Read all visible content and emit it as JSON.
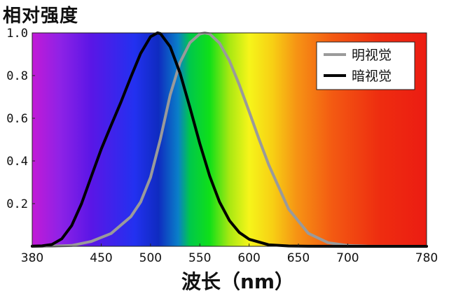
{
  "chart_data": {
    "type": "line",
    "ylabel": "相对强度",
    "xlabel": "波长（nm）",
    "xlim": [
      380,
      780
    ],
    "ylim": [
      0,
      1.0
    ],
    "xticks": [
      380,
      450,
      500,
      550,
      600,
      650,
      700,
      780
    ],
    "yticks": [
      0.2,
      0.4,
      0.6,
      0.8,
      1.0
    ],
    "ytick_labels": [
      "0.2",
      "0.4",
      "0.6",
      "0.8",
      "1.0"
    ],
    "grid": false,
    "legend_position": "top-right",
    "background": "visible spectrum gradient",
    "series": [
      {
        "name": "明视觉",
        "color": "#9a9a9a",
        "x": [
          380,
          400,
          420,
          440,
          460,
          480,
          490,
          500,
          510,
          520,
          530,
          540,
          550,
          555,
          560,
          570,
          580,
          590,
          600,
          610,
          620,
          640,
          660,
          680,
          700,
          720,
          740,
          780
        ],
        "y": [
          0.0,
          0.0004,
          0.004,
          0.023,
          0.06,
          0.139,
          0.208,
          0.323,
          0.503,
          0.71,
          0.862,
          0.954,
          0.995,
          1.0,
          0.995,
          0.952,
          0.87,
          0.757,
          0.631,
          0.503,
          0.381,
          0.175,
          0.061,
          0.017,
          0.004,
          0.001,
          0.0002,
          0.0
        ]
      },
      {
        "name": "暗视觉",
        "color": "#000000",
        "x": [
          380,
          390,
          400,
          410,
          420,
          430,
          440,
          450,
          460,
          470,
          480,
          490,
          500,
          507,
          510,
          520,
          530,
          540,
          550,
          560,
          570,
          580,
          590,
          600,
          620,
          640,
          660,
          700,
          780
        ],
        "y": [
          0.0006,
          0.002,
          0.009,
          0.035,
          0.097,
          0.2,
          0.328,
          0.455,
          0.567,
          0.676,
          0.793,
          0.904,
          0.982,
          1.0,
          0.997,
          0.935,
          0.811,
          0.65,
          0.481,
          0.329,
          0.208,
          0.121,
          0.065,
          0.033,
          0.007,
          0.0015,
          0.0003,
          0.0,
          0.0
        ]
      }
    ]
  }
}
